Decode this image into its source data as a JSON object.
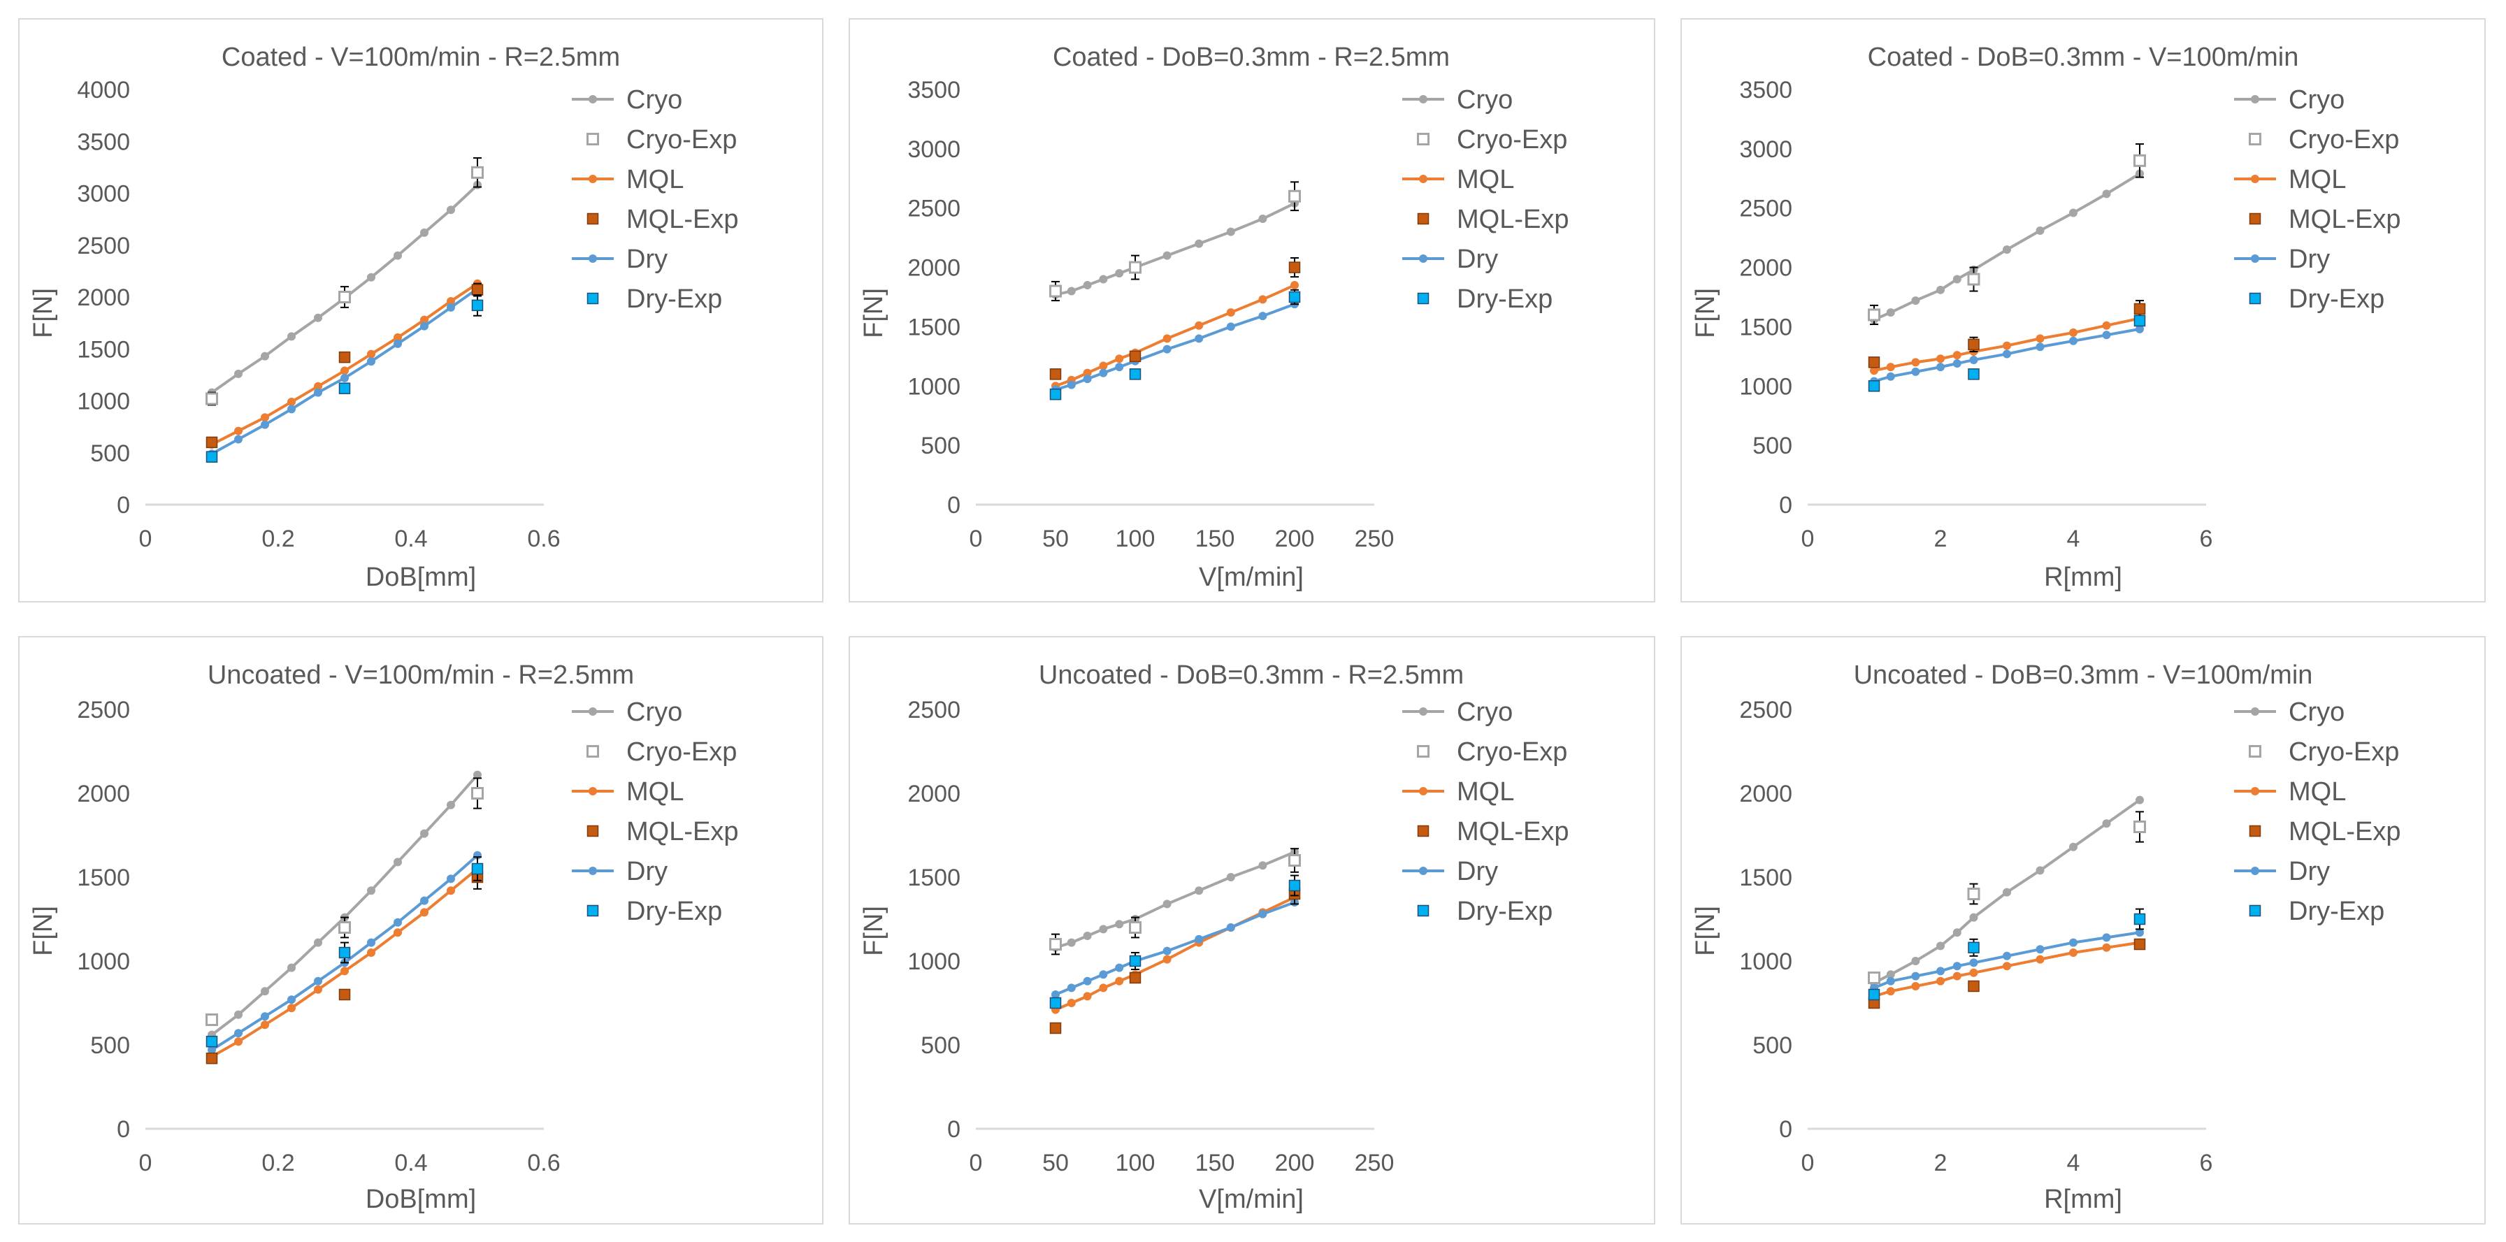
{
  "colors": {
    "Cryo": "#a5a5a5",
    "MQL": "#ed7d31",
    "Dry": "#5b9bd5",
    "MQL-Exp": "#c55a11",
    "Dry-Exp": "#00b0f0",
    "axis": "#d9d9d9",
    "text": "#595959"
  },
  "chart_data": [
    {
      "type": "line",
      "title": "Coated - V=100m/min - R=2.5mm",
      "xlabel": "DoB[mm]",
      "ylabel": "F[N]",
      "xlim": [
        0,
        0.6
      ],
      "xticks": [
        0,
        0.2,
        0.4,
        0.6
      ],
      "xtick_labels": [
        "0",
        "0.2",
        "0.4",
        "0.6"
      ],
      "ylim": [
        0,
        4000
      ],
      "yticks": [
        0,
        500,
        1000,
        1500,
        2000,
        2500,
        3000,
        3500,
        4000
      ],
      "ytick_labels": [
        "0",
        "500",
        "1000",
        "1500",
        "2000",
        "2500",
        "3000",
        "3500",
        "4000"
      ],
      "x": [
        0.1,
        0.14,
        0.18,
        0.22,
        0.26,
        0.3,
        0.34,
        0.38,
        0.42,
        0.46,
        0.5
      ],
      "series": [
        {
          "name": "Cryo",
          "values": [
            1080,
            1260,
            1430,
            1620,
            1800,
            1990,
            2190,
            2400,
            2620,
            2840,
            3080
          ]
        },
        {
          "name": "MQL",
          "values": [
            580,
            710,
            840,
            990,
            1140,
            1290,
            1450,
            1610,
            1780,
            1960,
            2130
          ]
        },
        {
          "name": "Dry",
          "values": [
            490,
            630,
            770,
            920,
            1080,
            1220,
            1380,
            1550,
            1720,
            1900,
            2080
          ]
        }
      ],
      "experiments": [
        {
          "name": "Cryo-Exp",
          "x": [
            0.1,
            0.3,
            0.5
          ],
          "values": [
            1020,
            2000,
            3200
          ],
          "err": [
            60,
            100,
            140
          ]
        },
        {
          "name": "MQL-Exp",
          "x": [
            0.1,
            0.3,
            0.5
          ],
          "values": [
            600,
            1420,
            2070
          ],
          "err": [
            0,
            0,
            60
          ]
        },
        {
          "name": "Dry-Exp",
          "x": [
            0.1,
            0.3,
            0.5
          ],
          "values": [
            460,
            1120,
            1920
          ],
          "err": [
            0,
            0,
            100
          ]
        }
      ],
      "legend": [
        "Cryo",
        "Cryo-Exp",
        "MQL",
        "MQL-Exp",
        "Dry",
        "Dry-Exp"
      ]
    },
    {
      "type": "line",
      "title": "Coated - DoB=0.3mm - R=2.5mm",
      "xlabel": "V[m/min]",
      "ylabel": "F[N]",
      "xlim": [
        0,
        250
      ],
      "xticks": [
        0,
        50,
        100,
        150,
        200,
        250
      ],
      "xtick_labels": [
        "0",
        "50",
        "100",
        "150",
        "200",
        "250"
      ],
      "ylim": [
        0,
        3500
      ],
      "yticks": [
        0,
        500,
        1000,
        1500,
        2000,
        2500,
        3000,
        3500
      ],
      "ytick_labels": [
        "0",
        "500",
        "1000",
        "1500",
        "2000",
        "2500",
        "3000",
        "3500"
      ],
      "x": [
        50,
        60,
        70,
        80,
        90,
        100,
        120,
        140,
        160,
        180,
        200
      ],
      "series": [
        {
          "name": "Cryo",
          "values": [
            1770,
            1800,
            1850,
            1900,
            1950,
            2000,
            2100,
            2200,
            2300,
            2410,
            2540
          ]
        },
        {
          "name": "MQL",
          "values": [
            1000,
            1050,
            1110,
            1170,
            1230,
            1280,
            1400,
            1510,
            1620,
            1730,
            1850
          ]
        },
        {
          "name": "Dry",
          "values": [
            970,
            1010,
            1060,
            1110,
            1160,
            1210,
            1310,
            1400,
            1500,
            1590,
            1690
          ]
        }
      ],
      "experiments": [
        {
          "name": "Cryo-Exp",
          "x": [
            50,
            100,
            200
          ],
          "values": [
            1800,
            2000,
            2600
          ],
          "err": [
            80,
            100,
            120
          ]
        },
        {
          "name": "MQL-Exp",
          "x": [
            50,
            100,
            200
          ],
          "values": [
            1100,
            1250,
            2000
          ],
          "err": [
            0,
            0,
            80
          ]
        },
        {
          "name": "Dry-Exp",
          "x": [
            50,
            100,
            200
          ],
          "values": [
            930,
            1100,
            1750
          ],
          "err": [
            0,
            0,
            60
          ]
        }
      ],
      "legend": [
        "Cryo",
        "Cryo-Exp",
        "MQL",
        "MQL-Exp",
        "Dry",
        "Dry-Exp"
      ]
    },
    {
      "type": "line",
      "title": "Coated - DoB=0.3mm - V=100m/min",
      "xlabel": "R[mm]",
      "ylabel": "F[N]",
      "xlim": [
        0,
        6
      ],
      "xticks": [
        0,
        2,
        4,
        6
      ],
      "xtick_labels": [
        "0",
        "2",
        "4",
        "6"
      ],
      "ylim": [
        0,
        3500
      ],
      "yticks": [
        0,
        500,
        1000,
        1500,
        2000,
        2500,
        3000,
        3500
      ],
      "ytick_labels": [
        "0",
        "500",
        "1000",
        "1500",
        "2000",
        "2500",
        "3000",
        "3500"
      ],
      "x": [
        1,
        1.25,
        1.625,
        2,
        2.25,
        2.5,
        3,
        3.5,
        4,
        4.5,
        5
      ],
      "series": [
        {
          "name": "Cryo",
          "values": [
            1560,
            1620,
            1720,
            1810,
            1900,
            1980,
            2150,
            2310,
            2460,
            2620,
            2790
          ]
        },
        {
          "name": "MQL",
          "values": [
            1130,
            1160,
            1200,
            1230,
            1260,
            1290,
            1340,
            1400,
            1450,
            1510,
            1570
          ]
        },
        {
          "name": "Dry",
          "values": [
            1040,
            1080,
            1120,
            1160,
            1190,
            1220,
            1270,
            1330,
            1380,
            1430,
            1480
          ]
        }
      ],
      "experiments": [
        {
          "name": "Cryo-Exp",
          "x": [
            1,
            2.5,
            5
          ],
          "values": [
            1600,
            1900,
            2900
          ],
          "err": [
            80,
            100,
            140
          ]
        },
        {
          "name": "MQL-Exp",
          "x": [
            1,
            2.5,
            5
          ],
          "values": [
            1200,
            1350,
            1650
          ],
          "err": [
            0,
            60,
            70
          ]
        },
        {
          "name": "Dry-Exp",
          "x": [
            1,
            2.5,
            5
          ],
          "values": [
            1000,
            1100,
            1550
          ],
          "err": [
            0,
            0,
            0
          ]
        }
      ],
      "legend": [
        "Cryo",
        "Cryo-Exp",
        "MQL",
        "MQL-Exp",
        "Dry",
        "Dry-Exp"
      ]
    },
    {
      "type": "line",
      "title": "Uncoated - V=100m/min - R=2.5mm",
      "xlabel": "DoB[mm]",
      "ylabel": "F[N]",
      "xlim": [
        0,
        0.6
      ],
      "xticks": [
        0,
        0.2,
        0.4,
        0.6
      ],
      "xtick_labels": [
        "0",
        "0.2",
        "0.4",
        "0.6"
      ],
      "ylim": [
        0,
        2500
      ],
      "yticks": [
        0,
        500,
        1000,
        1500,
        2000,
        2500
      ],
      "ytick_labels": [
        "0",
        "500",
        "1000",
        "1500",
        "2000",
        "2500"
      ],
      "x": [
        0.1,
        0.14,
        0.18,
        0.22,
        0.26,
        0.3,
        0.34,
        0.38,
        0.42,
        0.46,
        0.5
      ],
      "series": [
        {
          "name": "Cryo",
          "values": [
            560,
            680,
            820,
            960,
            1110,
            1260,
            1420,
            1590,
            1760,
            1930,
            2110
          ]
        },
        {
          "name": "MQL",
          "values": [
            430,
            520,
            620,
            720,
            830,
            940,
            1050,
            1170,
            1290,
            1420,
            1550
          ]
        },
        {
          "name": "Dry",
          "values": [
            470,
            570,
            670,
            770,
            880,
            990,
            1110,
            1230,
            1360,
            1490,
            1630
          ]
        }
      ],
      "experiments": [
        {
          "name": "Cryo-Exp",
          "x": [
            0.1,
            0.3,
            0.5
          ],
          "values": [
            650,
            1200,
            2000
          ],
          "err": [
            0,
            60,
            90
          ]
        },
        {
          "name": "MQL-Exp",
          "x": [
            0.1,
            0.3,
            0.5
          ],
          "values": [
            420,
            800,
            1500
          ],
          "err": [
            0,
            0,
            70
          ]
        },
        {
          "name": "Dry-Exp",
          "x": [
            0.1,
            0.3,
            0.5
          ],
          "values": [
            520,
            1050,
            1550
          ],
          "err": [
            0,
            60,
            70
          ]
        }
      ],
      "legend": [
        "Cryo",
        "Cryo-Exp",
        "MQL",
        "MQL-Exp",
        "Dry",
        "Dry-Exp"
      ]
    },
    {
      "type": "line",
      "title": "Uncoated - DoB=0.3mm - R=2.5mm",
      "xlabel": "V[m/min]",
      "ylabel": "F[N]",
      "xlim": [
        0,
        250
      ],
      "xticks": [
        0,
        50,
        100,
        150,
        200,
        250
      ],
      "xtick_labels": [
        "0",
        "50",
        "100",
        "150",
        "200",
        "250"
      ],
      "ylim": [
        0,
        2500
      ],
      "yticks": [
        0,
        500,
        1000,
        1500,
        2000,
        2500
      ],
      "ytick_labels": [
        "0",
        "500",
        "1000",
        "1500",
        "2000",
        "2500"
      ],
      "x": [
        50,
        60,
        70,
        80,
        90,
        100,
        120,
        140,
        160,
        180,
        200
      ],
      "series": [
        {
          "name": "Cryo",
          "values": [
            1080,
            1110,
            1150,
            1190,
            1220,
            1250,
            1340,
            1420,
            1500,
            1570,
            1650
          ]
        },
        {
          "name": "MQL",
          "values": [
            710,
            750,
            790,
            840,
            880,
            920,
            1010,
            1110,
            1200,
            1290,
            1380
          ]
        },
        {
          "name": "Dry",
          "values": [
            800,
            840,
            880,
            920,
            960,
            1000,
            1060,
            1130,
            1200,
            1280,
            1350
          ]
        }
      ],
      "experiments": [
        {
          "name": "Cryo-Exp",
          "x": [
            50,
            100,
            200
          ],
          "values": [
            1100,
            1200,
            1600
          ],
          "err": [
            60,
            60,
            70
          ]
        },
        {
          "name": "MQL-Exp",
          "x": [
            50,
            100,
            200
          ],
          "values": [
            600,
            900,
            1400
          ],
          "err": [
            0,
            0,
            60
          ]
        },
        {
          "name": "Dry-Exp",
          "x": [
            50,
            100,
            200
          ],
          "values": [
            750,
            1000,
            1450
          ],
          "err": [
            0,
            50,
            60
          ]
        }
      ],
      "legend": [
        "Cryo",
        "Cryo-Exp",
        "MQL",
        "MQL-Exp",
        "Dry",
        "Dry-Exp"
      ]
    },
    {
      "type": "line",
      "title": "Uncoated - DoB=0.3mm - V=100m/min",
      "xlabel": "R[mm]",
      "ylabel": "F[N]",
      "xlim": [
        0,
        6
      ],
      "xticks": [
        0,
        2,
        4,
        6
      ],
      "xtick_labels": [
        "0",
        "2",
        "4",
        "6"
      ],
      "ylim": [
        0,
        2500
      ],
      "yticks": [
        0,
        500,
        1000,
        1500,
        2000,
        2500
      ],
      "ytick_labels": [
        "0",
        "500",
        "1000",
        "1500",
        "2000",
        "2500"
      ],
      "x": [
        1,
        1.25,
        1.625,
        2,
        2.25,
        2.5,
        3,
        3.5,
        4,
        4.5,
        5
      ],
      "series": [
        {
          "name": "Cryo",
          "values": [
            870,
            920,
            1000,
            1090,
            1170,
            1260,
            1410,
            1540,
            1680,
            1820,
            1960
          ]
        },
        {
          "name": "MQL",
          "values": [
            790,
            820,
            850,
            880,
            910,
            930,
            970,
            1010,
            1050,
            1080,
            1110
          ]
        },
        {
          "name": "Dry",
          "values": [
            840,
            880,
            910,
            940,
            970,
            990,
            1030,
            1070,
            1110,
            1140,
            1170
          ]
        }
      ],
      "experiments": [
        {
          "name": "Cryo-Exp",
          "x": [
            1,
            2.5,
            5
          ],
          "values": [
            900,
            1400,
            1800
          ],
          "err": [
            0,
            60,
            90
          ]
        },
        {
          "name": "MQL-Exp",
          "x": [
            1,
            2.5,
            5
          ],
          "values": [
            750,
            850,
            1100
          ],
          "err": [
            0,
            0,
            0
          ]
        },
        {
          "name": "Dry-Exp",
          "x": [
            1,
            2.5,
            5
          ],
          "values": [
            800,
            1080,
            1250
          ],
          "err": [
            0,
            50,
            60
          ]
        }
      ],
      "legend": [
        "Cryo",
        "Cryo-Exp",
        "MQL",
        "MQL-Exp",
        "Dry",
        "Dry-Exp"
      ]
    }
  ]
}
